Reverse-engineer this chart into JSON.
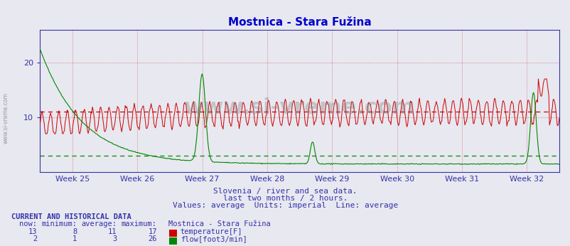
{
  "title": "Mostnica - Stara Fužina",
  "bg_color": "#e8e8f0",
  "plot_bg_color": "#e8e8f0",
  "temp_color": "#cc0000",
  "flow_color": "#008800",
  "temp_avg": 11,
  "flow_avg": 3,
  "temp_min": 8,
  "temp_max": 17,
  "temp_now": 13,
  "flow_min": 1,
  "flow_max": 26,
  "flow_now": 2,
  "temp_average": 11,
  "flow_average": 3,
  "xlabel_color": "#3333aa",
  "title_color": "#0000cc",
  "subtitle1": "Slovenia / river and sea data.",
  "subtitle2": "last two months / 2 hours.",
  "subtitle3": "Values: average  Units: imperial  Line: average",
  "week_labels": [
    "Week 25",
    "Week 26",
    "Week 27",
    "Week 28",
    "Week 29",
    "Week 30",
    "Week 31",
    "Week 32"
  ],
  "footer_text": "CURRENT AND HISTORICAL DATA",
  "watermark": "www.si-vreme.com",
  "num_points": 744
}
